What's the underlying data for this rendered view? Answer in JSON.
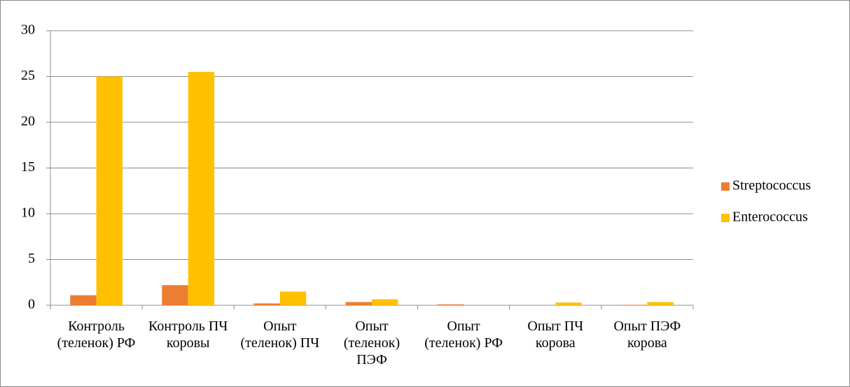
{
  "chart_data": {
    "type": "bar",
    "categories": [
      "Контроль (теленок) РФ",
      "Контроль ПЧ коровы",
      "Опыт (теленок) ПЧ",
      "Опыт (теленок) ПЭФ",
      "Опыт (теленок) РФ",
      "Опыт ПЧ корова",
      "Опыт ПЭФ корова"
    ],
    "series": [
      {
        "name": "Streptococcus",
        "color": "#ed7d31",
        "values": [
          1.1,
          2.2,
          0.2,
          0.35,
          0.1,
          0,
          0.05
        ]
      },
      {
        "name": "Enterococcus",
        "color": "#ffc000",
        "values": [
          25,
          25.5,
          1.5,
          0.65,
          0,
          0.3,
          0.35
        ]
      }
    ],
    "ylim": [
      0,
      30
    ],
    "yticks": [
      0,
      5,
      10,
      15,
      20,
      25,
      30
    ],
    "grid": true,
    "legend": "right"
  }
}
